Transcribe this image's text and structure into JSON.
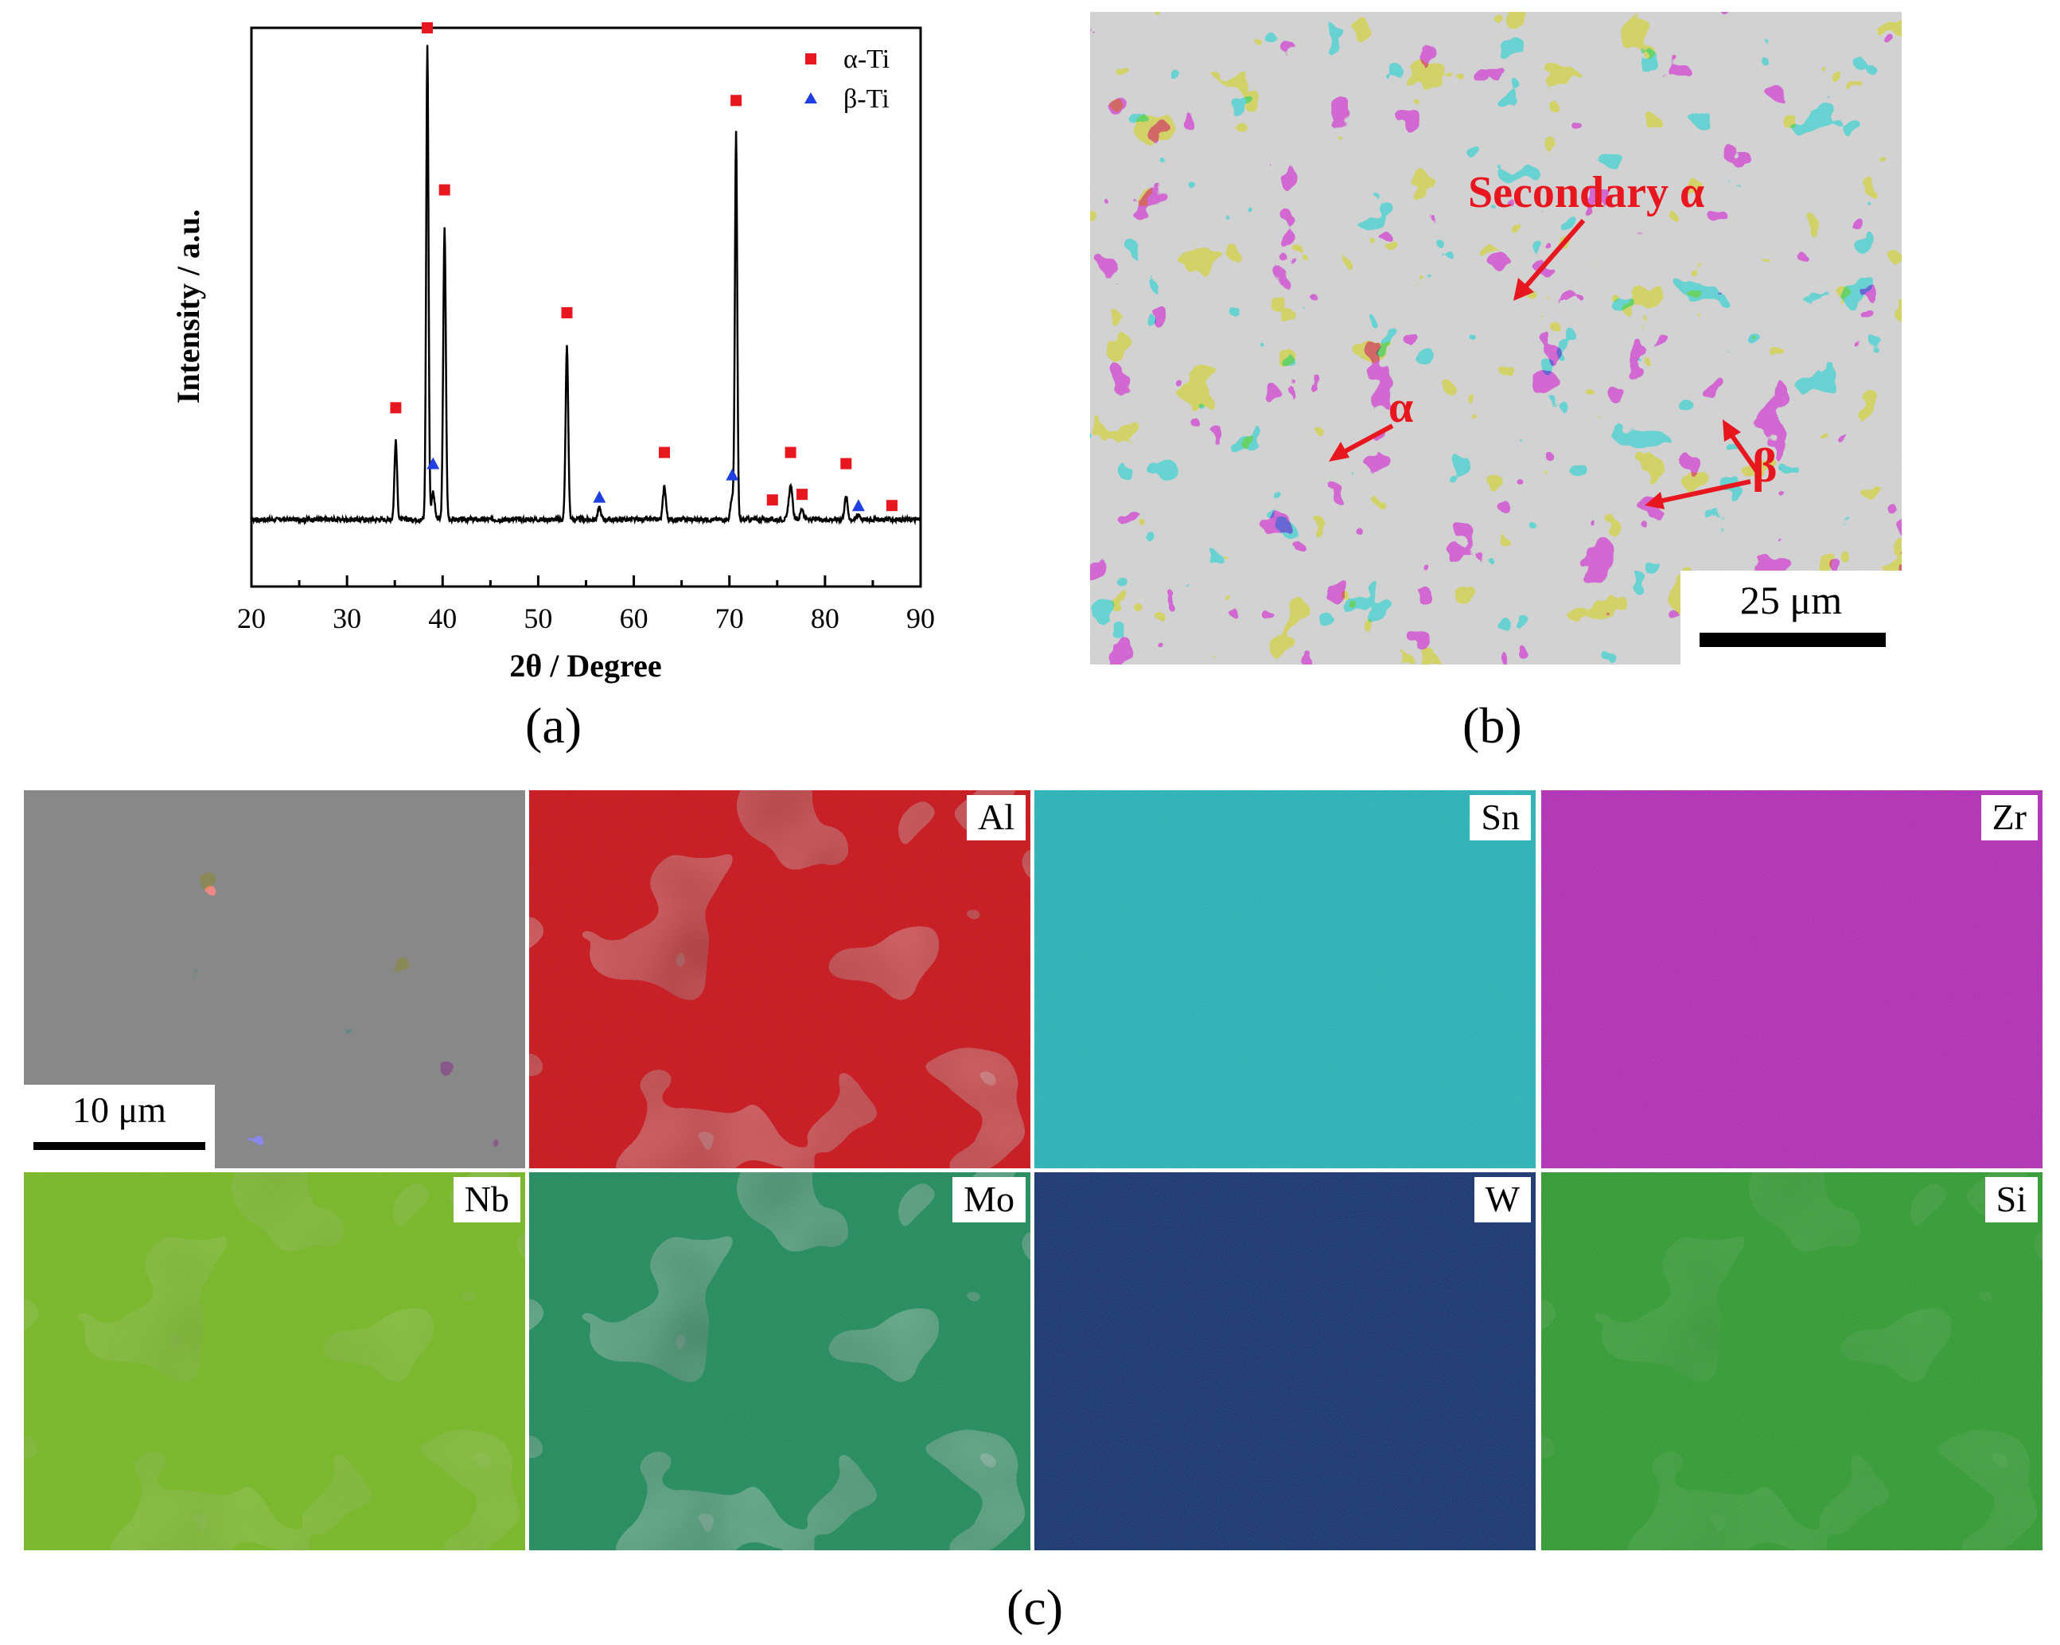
{
  "panel_a": {
    "label": "(a)",
    "chart_data": {
      "type": "line",
      "xlabel": "2θ / Degree",
      "ylabel": "Intensity / a.u.",
      "xlim": [
        20,
        90
      ],
      "ylim": [
        0,
        100
      ],
      "x_ticks": [
        20,
        30,
        40,
        50,
        60,
        70,
        80,
        90
      ],
      "grid": false,
      "legend_position": "top-right",
      "legend": [
        {
          "name": "α-Ti",
          "marker": "square",
          "color": "#e8161f"
        },
        {
          "name": "β-Ti",
          "marker": "triangle",
          "color": "#1f3fe0"
        }
      ],
      "baseline": 12,
      "peaks": [
        {
          "x": 35.1,
          "y": 26,
          "w": 0.25
        },
        {
          "x": 38.4,
          "y": 97,
          "w": 0.22
        },
        {
          "x": 39.0,
          "y": 17,
          "w": 0.3
        },
        {
          "x": 40.2,
          "y": 64,
          "w": 0.25
        },
        {
          "x": 53.0,
          "y": 43,
          "w": 0.25
        },
        {
          "x": 56.4,
          "y": 14,
          "w": 0.3
        },
        {
          "x": 63.2,
          "y": 18,
          "w": 0.28
        },
        {
          "x": 70.3,
          "y": 16,
          "w": 0.3
        },
        {
          "x": 70.7,
          "y": 81,
          "w": 0.22
        },
        {
          "x": 76.4,
          "y": 18,
          "w": 0.35
        },
        {
          "x": 77.6,
          "y": 14,
          "w": 0.3
        },
        {
          "x": 82.2,
          "y": 16,
          "w": 0.3
        },
        {
          "x": 83.5,
          "y": 13,
          "w": 0.3
        }
      ],
      "alpha_markers": [
        {
          "x": 35.1,
          "y": 32
        },
        {
          "x": 38.4,
          "y": 100
        },
        {
          "x": 40.2,
          "y": 71
        },
        {
          "x": 53.0,
          "y": 49
        },
        {
          "x": 63.2,
          "y": 24
        },
        {
          "x": 70.7,
          "y": 87
        },
        {
          "x": 74.5,
          "y": 15.5
        },
        {
          "x": 76.4,
          "y": 24
        },
        {
          "x": 77.6,
          "y": 16.5
        },
        {
          "x": 82.2,
          "y": 22
        },
        {
          "x": 87.0,
          "y": 14.5
        }
      ],
      "beta_markers": [
        {
          "x": 39.0,
          "y": 22
        },
        {
          "x": 56.4,
          "y": 16
        },
        {
          "x": 70.3,
          "y": 20
        },
        {
          "x": 83.5,
          "y": 14.5
        }
      ]
    }
  },
  "panel_b": {
    "label": "(b)",
    "annotations": {
      "secondary_alpha": "Secondary α",
      "alpha": "α",
      "beta": "β"
    },
    "scalebar": "25 μm",
    "annotation_color": "#e8161f"
  },
  "panel_c": {
    "label": "(c)",
    "scalebar": "10 μm",
    "maps": [
      {
        "element": "Al",
        "color": "#c8141a"
      },
      {
        "element": "Sn",
        "color": "#23b3b8"
      },
      {
        "element": "Zr",
        "color": "#b22ab6"
      },
      {
        "element": "Nb",
        "color": "#74b81e"
      },
      {
        "element": "Mo",
        "color": "#1d8a5a"
      },
      {
        "element": "W",
        "color": "#12306e"
      },
      {
        "element": "Si",
        "color": "#2c9b2c"
      }
    ]
  }
}
